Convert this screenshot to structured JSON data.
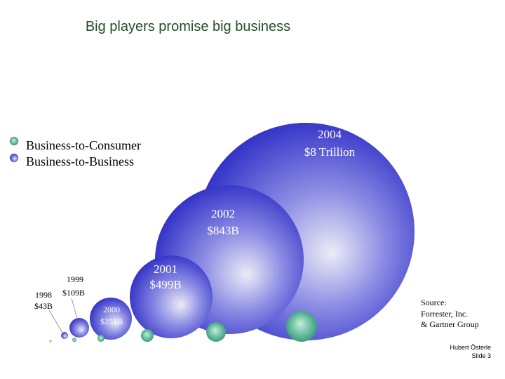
{
  "title": "Big players promise big business",
  "legend": [
    "Business-to-Consumer",
    "Business-to-Business"
  ],
  "bubbles": [
    {
      "year": "1998",
      "value": "$43B"
    },
    {
      "year": "1999",
      "value": "$109B"
    },
    {
      "year": "2000",
      "value": "$251B"
    },
    {
      "year": "2001",
      "value": "$499B"
    },
    {
      "year": "2002",
      "value": "$843B"
    },
    {
      "year": "2004",
      "value": "$8 Trillion"
    }
  ],
  "source": [
    "Source:",
    "Forrester, Inc.",
    "& Gartner Group"
  ],
  "footer": {
    "author": "Hubert Österle",
    "slide": "Slide  3"
  }
}
